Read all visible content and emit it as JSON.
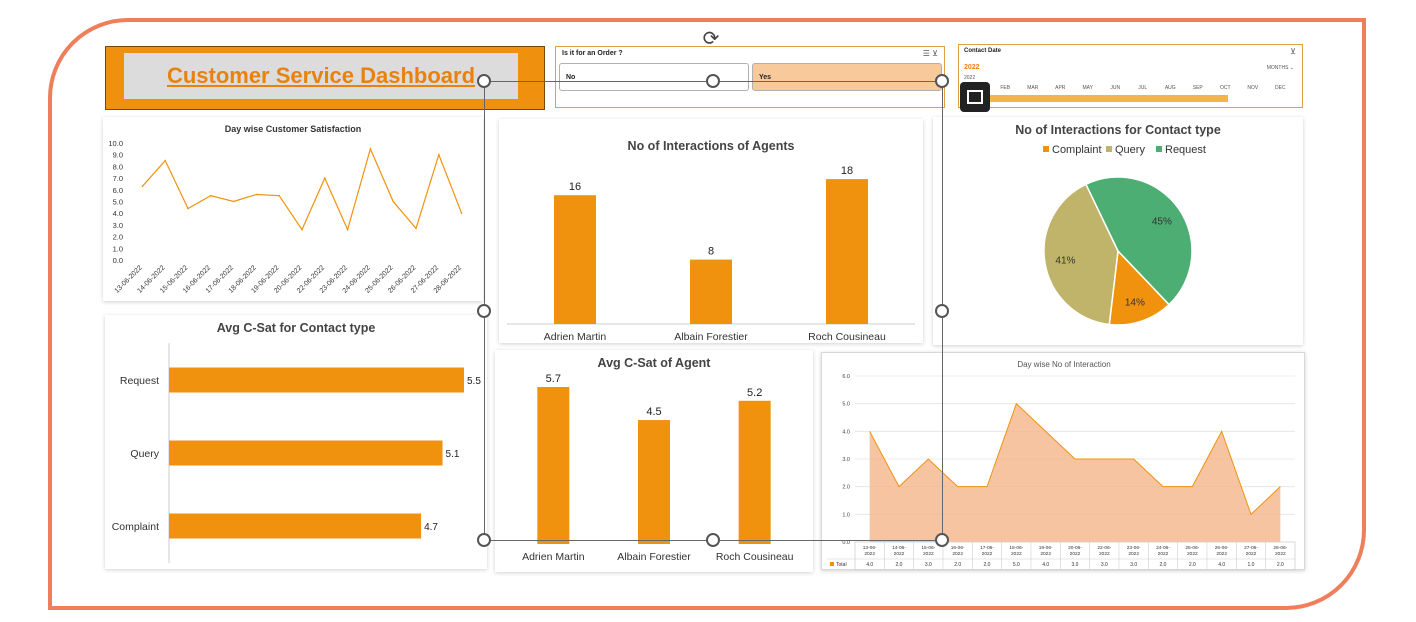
{
  "header": {
    "title": "Customer Service Dashboard"
  },
  "slicer": {
    "title": "Is it for an Order ?",
    "options": [
      "No",
      "Yes"
    ],
    "selected": "Yes"
  },
  "timeline": {
    "title": "Contact Date",
    "year": "2022",
    "year_small": "2022",
    "level": "MONTHS",
    "months": [
      "JAN",
      "FEB",
      "MAR",
      "APR",
      "MAY",
      "JUN",
      "JUL",
      "AUG",
      "SEP",
      "OCT",
      "NOV",
      "DEC"
    ]
  },
  "chart_data": [
    {
      "type": "line",
      "title": "Day wise Customer Satisfaction",
      "x": [
        "13-06-2022",
        "14-06-2022",
        "15-06-2022",
        "16-06-2022",
        "17-06-2022",
        "18-06-2022",
        "19-06-2022",
        "20-06-2022",
        "22-06-2022",
        "23-06-2022",
        "24-06-2022",
        "25-06-2022",
        "26-06-2022",
        "27-06-2022",
        "28-06-2022"
      ],
      "values": [
        6.3,
        8.5,
        4.4,
        5.5,
        5.0,
        5.6,
        5.5,
        2.6,
        7.0,
        2.6,
        9.5,
        5.0,
        2.7,
        9.0,
        4.0
      ],
      "ylim": [
        0,
        10
      ],
      "yticks": [
        "0.0",
        "1.0",
        "2.0",
        "3.0",
        "4.0",
        "5.0",
        "6.0",
        "7.0",
        "8.0",
        "9.0",
        "10.0"
      ],
      "color": "#f0920e"
    },
    {
      "type": "bar",
      "title": "No of Interactions of Agents",
      "categories": [
        "Adrien Martin",
        "Albain Forestier",
        "Roch Cousineau"
      ],
      "values": [
        16,
        8,
        18
      ],
      "labels": [
        "16",
        "8",
        "18"
      ],
      "ylim": [
        0,
        20
      ],
      "color": "#f0920e"
    },
    {
      "type": "pie",
      "title": "No of Interactions for Contact type",
      "categories": [
        "Complaint",
        "Query",
        "Request"
      ],
      "values": [
        14,
        41,
        45
      ],
      "labels": [
        "14%",
        "41%",
        "45%"
      ],
      "colors": [
        "#f0920e",
        "#c0b36a",
        "#4cae72"
      ],
      "legend": "top"
    },
    {
      "type": "bar",
      "orientation": "horizontal",
      "title": "Avg C-Sat for Contact type",
      "categories": [
        "Request",
        "Query",
        "Complaint"
      ],
      "values": [
        5.5,
        5.1,
        4.7
      ],
      "labels": [
        "5.5",
        "5.1",
        "4.7"
      ],
      "xlim": [
        0,
        5.5
      ],
      "color": "#f0920e"
    },
    {
      "type": "bar",
      "title": "Avg C-Sat of Agent",
      "categories": [
        "Adrien Martin",
        "Albain Forestier",
        "Roch Cousineau"
      ],
      "values": [
        5.7,
        4.5,
        5.2
      ],
      "labels": [
        "5.7",
        "4.5",
        "5.2"
      ],
      "ylim": [
        0,
        5.7
      ],
      "color": "#f0920e"
    },
    {
      "type": "area",
      "title": "Day wise No of Interaction",
      "x": [
        "13-06-2022",
        "14-06-2022",
        "15-06-2022",
        "16-06-2022",
        "17-06-2022",
        "18-06-2022",
        "19-06-2022",
        "20-06-2022",
        "22-06-2022",
        "23-06-2022",
        "24-06-2022",
        "25-06-2022",
        "26-06-2022",
        "27-06-2022",
        "28-06-2022"
      ],
      "x_top": [
        "13-06-",
        "14-06-",
        "15-06-",
        "16-06-",
        "17-06-",
        "18-06-",
        "19-06-",
        "20-06-",
        "22-06-",
        "23-06-",
        "24-06-",
        "25-06-",
        "26-06-",
        "27-06-",
        "28-06-"
      ],
      "x_bottom": [
        "2022",
        "2022",
        "2022",
        "2022",
        "2022",
        "2022",
        "2022",
        "2022",
        "2022",
        "2022",
        "2022",
        "2022",
        "2022",
        "2022",
        "2022"
      ],
      "values": [
        4.0,
        2.0,
        3.0,
        2.0,
        2.0,
        5.0,
        4.0,
        3.0,
        3.0,
        3.0,
        2.0,
        2.0,
        4.0,
        1.0,
        2.0
      ],
      "table_row_label": "Total",
      "table_values": [
        "4.0",
        "2.0",
        "3.0",
        "2.0",
        "2.0",
        "5.0",
        "4.0",
        "3.0",
        "3.0",
        "3.0",
        "2.0",
        "2.0",
        "4.0",
        "1.0",
        "2.0"
      ],
      "ylim": [
        0,
        6
      ],
      "yticks": [
        "0.0",
        "1.0",
        "2.0",
        "3.0",
        "4.0",
        "5.0",
        "6.0"
      ],
      "color": "#f5b58a"
    }
  ]
}
